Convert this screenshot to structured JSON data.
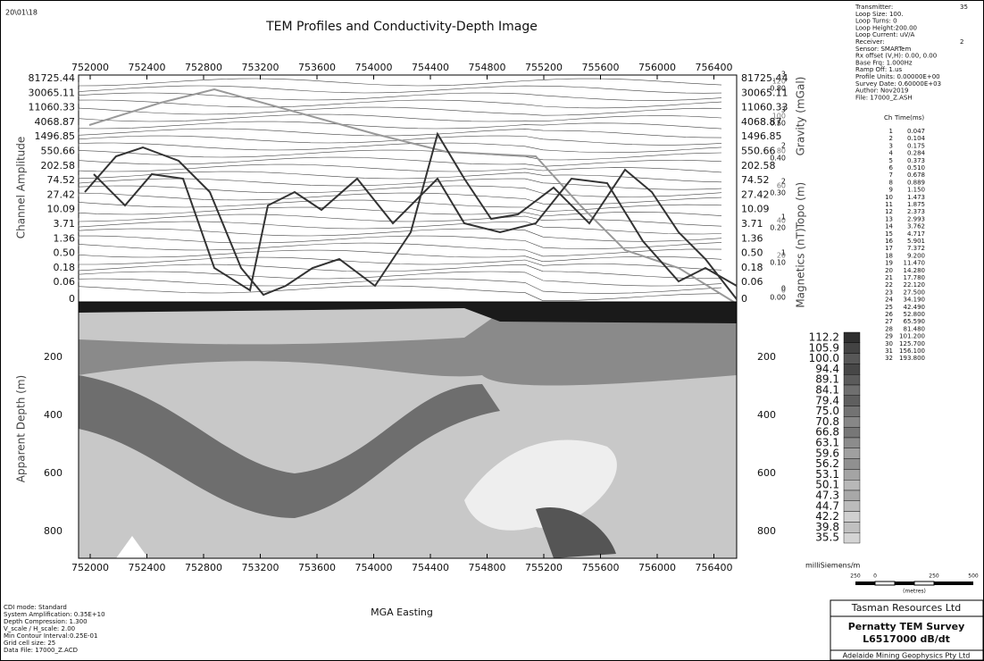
{
  "header": {
    "date": "20\\01\\18",
    "title": "TEM Profiles and Conductivity-Depth Image"
  },
  "axes": {
    "easting_ticks": [
      "752000",
      "752400",
      "752800",
      "753200",
      "753600",
      "754000",
      "754400",
      "754800",
      "755200",
      "755600",
      "756000",
      "756400"
    ],
    "amplitude_ticks": [
      "81725.44",
      "30065.11",
      "11060.33",
      "4068.87",
      "1496.85",
      "550.66",
      "202.58",
      "74.52",
      "27.42",
      "10.09",
      "3.71",
      "1.36",
      "0.50",
      "0.18",
      "0.06",
      "0"
    ],
    "depth_ticks": [
      "200",
      "400",
      "600",
      "800"
    ],
    "amplitude_title": "Channel Amplitude",
    "depth_title": "Apparent Depth (m)",
    "easting_title": "MGA Easting",
    "gravity_title": "Gravity (mGal)",
    "topo_title": "Topo (m)",
    "magnetics_title": "Magnetics (nT)",
    "gravity_ticks": [
      "0.80",
      "0.50",
      "0.40",
      "0.30",
      "0.20",
      "0.10",
      "0.00"
    ],
    "topo_ticks": [
      "120",
      "100",
      "80",
      "60",
      "40",
      "20",
      "0"
    ],
    "magnetics_ticks": [
      "3",
      "3",
      "2",
      "2",
      "1",
      "1",
      "0"
    ]
  },
  "color_scale": {
    "labels": [
      "112.2",
      "105.9",
      "100.0",
      "94.4",
      "89.1",
      "84.1",
      "79.4",
      "75.0",
      "70.8",
      "66.8",
      "63.1",
      "59.6",
      "56.2",
      "53.1",
      "50.1",
      "47.3",
      "44.7",
      "42.2",
      "39.8",
      "35.5"
    ],
    "unit": "milliSiemens/m"
  },
  "scale_bar": {
    "labels": [
      "250",
      "0",
      "250",
      "500"
    ],
    "unit": "(metres)"
  },
  "info": {
    "lines": [
      {
        "label": "Transmitter:",
        "value": "35"
      },
      {
        "label": "Loop Size: 100."
      },
      {
        "label": "Loop Turns: 0"
      },
      {
        "label": "Loop Height:200.00"
      },
      {
        "label": "Loop Current: uV/A"
      },
      {
        "label": "Receiver:",
        "value": "2"
      },
      {
        "label": "Sensor: SMARTem"
      },
      {
        "label": "Rx offset (V,H): 0.00, 0.00"
      },
      {
        "label": "Base Frq: 1.000Hz"
      },
      {
        "label": "Ramp Off: 1.us"
      },
      {
        "label": "Profile Units: 0.00000E+00"
      },
      {
        "label": "Survey Date: 0.60000E+03"
      },
      {
        "label": "Author: Nov2019"
      },
      {
        "label": "File: 17000_Z.ASH"
      }
    ],
    "channel_header": [
      "Ch",
      "Time(ms)"
    ],
    "channels": [
      [
        "1",
        "0.047"
      ],
      [
        "2",
        "0.104"
      ],
      [
        "3",
        "0.175"
      ],
      [
        "4",
        "0.284"
      ],
      [
        "5",
        "0.373"
      ],
      [
        "6",
        "0.510"
      ],
      [
        "7",
        "0.678"
      ],
      [
        "8",
        "0.889"
      ],
      [
        "9",
        "1.150"
      ],
      [
        "10",
        "1.473"
      ],
      [
        "11",
        "1.875"
      ],
      [
        "12",
        "2.373"
      ],
      [
        "13",
        "2.993"
      ],
      [
        "14",
        "3.762"
      ],
      [
        "15",
        "4.717"
      ],
      [
        "16",
        "5.901"
      ],
      [
        "17",
        "7.372"
      ],
      [
        "18",
        "9.200"
      ],
      [
        "19",
        "11.470"
      ],
      [
        "20",
        "14.280"
      ],
      [
        "21",
        "17.780"
      ],
      [
        "22",
        "22.120"
      ],
      [
        "23",
        "27.500"
      ],
      [
        "24",
        "34.190"
      ],
      [
        "25",
        "42.490"
      ],
      [
        "26",
        "52.800"
      ],
      [
        "27",
        "65.590"
      ],
      [
        "28",
        "81.480"
      ],
      [
        "29",
        "101.200"
      ],
      [
        "30",
        "125.700"
      ],
      [
        "31",
        "156.100"
      ],
      [
        "32",
        "193.800"
      ]
    ]
  },
  "parameters": [
    "CDI mode: Standard",
    "System Amplification: 0.35E+10",
    "Depth Compression: 1.300",
    "V_scale / H_scale: 2.00",
    "Min Contour Interval:0.25E-01",
    "Grid cell size: 25",
    "Data File: 17000_Z.ACD"
  ],
  "title_block": {
    "company": "Tasman Resources Ltd",
    "survey": "Pernatty TEM Survey",
    "line": "L6517000 dB/dt",
    "contractor": "Adelaide Mining Geophysics Pty Ltd"
  }
}
